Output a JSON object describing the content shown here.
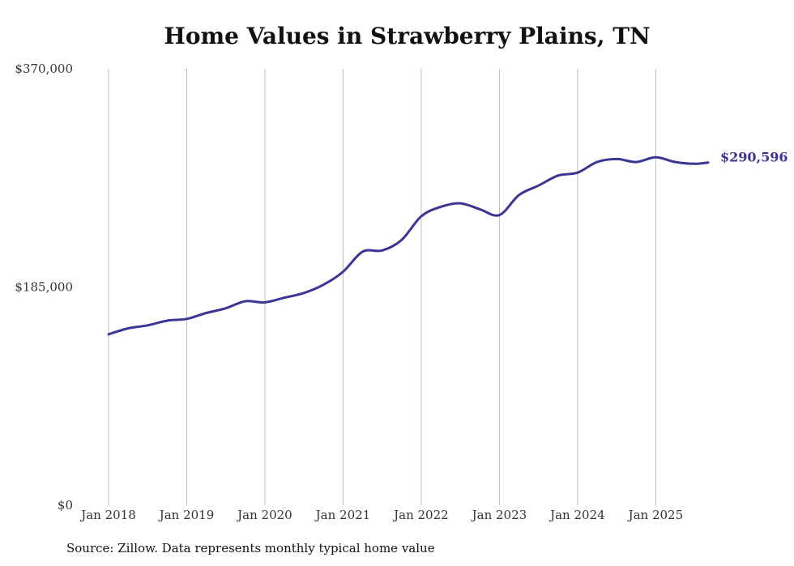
{
  "chart_data": {
    "type": "line",
    "title": "Home Values in Strawberry Plains, TN",
    "xlabel": "",
    "ylabel": "",
    "ylim": [
      0,
      370000
    ],
    "y_ticks": [
      {
        "value": 0,
        "label": "$0"
      },
      {
        "value": 185000,
        "label": "$185,000"
      },
      {
        "value": 370000,
        "label": "$370,000"
      }
    ],
    "x_ticks": [
      {
        "value": 2018,
        "label": "Jan 2018"
      },
      {
        "value": 2019,
        "label": "Jan 2019"
      },
      {
        "value": 2020,
        "label": "Jan 2020"
      },
      {
        "value": 2021,
        "label": "Jan 2021"
      },
      {
        "value": 2022,
        "label": "Jan 2022"
      },
      {
        "value": 2023,
        "label": "Jan 2023"
      },
      {
        "value": 2024,
        "label": "Jan 2024"
      },
      {
        "value": 2025,
        "label": "Jan 2025"
      }
    ],
    "xlim": [
      2018,
      2025.67
    ],
    "grid": "vertical",
    "series": [
      {
        "name": "Home value",
        "color": "#3b3594",
        "end_label": "$290,596",
        "x": [
          2018.0,
          2018.25,
          2018.5,
          2018.75,
          2019.0,
          2019.25,
          2019.5,
          2019.75,
          2020.0,
          2020.25,
          2020.5,
          2020.75,
          2021.0,
          2021.25,
          2021.5,
          2021.75,
          2022.0,
          2022.25,
          2022.5,
          2022.75,
          2023.0,
          2023.25,
          2023.5,
          2023.75,
          2024.0,
          2024.25,
          2024.5,
          2024.75,
          2025.0,
          2025.25,
          2025.5,
          2025.67
        ],
        "values": [
          145000,
          150000,
          152500,
          156500,
          158000,
          163000,
          167000,
          173000,
          172000,
          176000,
          180000,
          187000,
          198000,
          215000,
          216000,
          225000,
          245000,
          253000,
          256000,
          251000,
          246000,
          263000,
          271000,
          279500,
          282000,
          291000,
          293500,
          291000,
          295000,
          291000,
          289500,
          290596
        ]
      }
    ]
  },
  "source_note": "Source: Zillow. Data represents monthly typical home value"
}
